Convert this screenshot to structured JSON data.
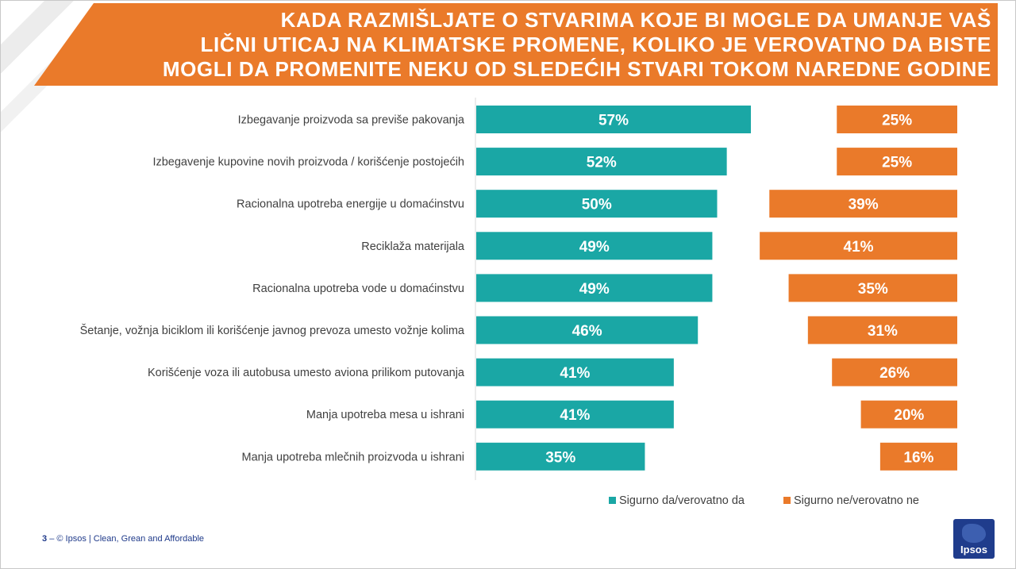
{
  "title": "KADA RAZMIŠLJATE O STVARIMA KOJE BI MOGLE DA UMANJE VAŠ\nLIČNI UTICAJ NA KLIMATSKE PROMENE, KOLIKO JE VEROVATNO DA BISTE\nMOGLI DA PROMENITE NEKU OD SLEDEĆIH STVARI TOKOM NAREDNE GODINE",
  "colors": {
    "teal": "#1aa7a5",
    "orange": "#ea7a2a",
    "accent": "#ea7a2a"
  },
  "footer": {
    "page": "3",
    "separator": "–",
    "text": "© Ipsos | Clean, Grean and Affordable"
  },
  "logo": {
    "text": "Ipsos"
  },
  "chart_data": {
    "type": "bar",
    "orientation": "horizontal",
    "categories": [
      "Izbegavanje proizvoda sa previše pakovanja",
      "Izbegavenje kupovine novih proizvoda / korišćenje postojećih",
      "Racionalna upotreba energije u domaćinstvu",
      "Reciklaža materijala",
      "Racionalna upotreba vode u domaćinstvu",
      "Šetanje, vožnja biciklom ili korišćenje javnog prevoza umesto vožnje kolima",
      "Korišćenje voza ili autobusa umesto aviona prilikom putovanja",
      "Manja upotreba mesa u ishrani",
      "Manja upotreba mlečnih proizvoda u ishrani"
    ],
    "series": [
      {
        "name": "Sigurno da/verovatno da",
        "values": [
          57,
          52,
          50,
          49,
          49,
          46,
          41,
          41,
          35
        ],
        "color": "#1aa7a5"
      },
      {
        "name": "Sigurno ne/verovatno ne",
        "values": [
          25,
          25,
          39,
          41,
          35,
          31,
          26,
          20,
          16
        ],
        "color": "#ea7a2a"
      }
    ],
    "value_suffix": "%",
    "legend_position": "bottom-right",
    "grid": false
  }
}
